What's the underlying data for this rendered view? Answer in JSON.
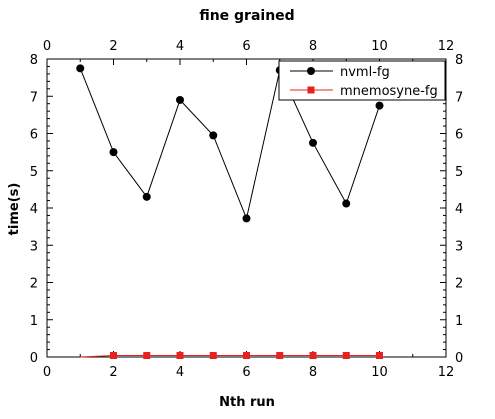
{
  "chart_data": {
    "type": "line",
    "title": "fine grained",
    "xlabel": "Nth run",
    "ylabel": "time(s)",
    "xlim": [
      0,
      12
    ],
    "ylim": [
      0,
      8
    ],
    "xticks": [
      0,
      2,
      4,
      6,
      8,
      10,
      12
    ],
    "yticks": [
      0,
      1,
      2,
      3,
      4,
      5,
      6,
      7,
      8
    ],
    "mirror_axes": true,
    "grid": false,
    "legend_position": "top-right",
    "series": [
      {
        "name": "nvml-fg",
        "color": "#000000",
        "marker": "circle",
        "x": [
          1,
          2,
          3,
          4,
          5,
          6,
          7,
          8,
          9,
          10
        ],
        "y": [
          7.75,
          5.5,
          4.3,
          6.9,
          5.95,
          3.72,
          7.7,
          5.75,
          4.12,
          6.75
        ]
      },
      {
        "name": "mnemosyne-fg",
        "color": "#e8201e",
        "marker": "square",
        "x": [
          1,
          2,
          3,
          4,
          5,
          6,
          7,
          8,
          9,
          10
        ],
        "y": [
          0.0,
          0.04,
          0.04,
          0.04,
          0.04,
          0.04,
          0.04,
          0.04,
          0.04,
          0.04
        ]
      }
    ]
  }
}
